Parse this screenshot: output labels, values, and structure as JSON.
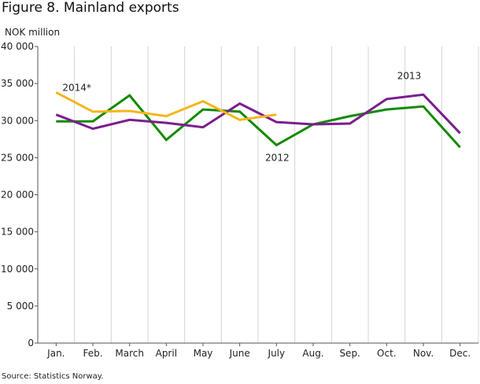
{
  "title": "Figure 8. Mainland exports",
  "source": "Source: Statistics Norway.",
  "chart_data": {
    "type": "line",
    "ylabel": "NOK million",
    "ylim": [
      0,
      40000
    ],
    "y_ticks": [
      0,
      5000,
      10000,
      15000,
      20000,
      25000,
      30000,
      35000,
      40000
    ],
    "y_tick_labels": [
      "0",
      "5 000",
      "10 000",
      "15 000",
      "20 000",
      "25 000",
      "30 000",
      "35 000",
      "40 000"
    ],
    "categories": [
      "Jan.",
      "Feb.",
      "March",
      "April",
      "May",
      "June",
      "July",
      "Aug.",
      "Sep.",
      "Oct.",
      "Nov.",
      "Dec."
    ],
    "grid": "vertical",
    "series": [
      {
        "name": "2012",
        "color": "#138a00",
        "values": [
          29900,
          29900,
          33400,
          27400,
          31500,
          31200,
          26700,
          29500,
          30600,
          31500,
          31900,
          26400
        ]
      },
      {
        "name": "2013",
        "color": "#7b1d8e",
        "values": [
          30800,
          28900,
          30100,
          29700,
          29100,
          32300,
          29800,
          29500,
          29600,
          32900,
          33500,
          28300
        ]
      },
      {
        "name": "2014*",
        "color": "#f5b51c",
        "values": [
          33800,
          31200,
          31300,
          30600,
          32600,
          30100,
          30800,
          null,
          null,
          null,
          null,
          null
        ]
      }
    ]
  }
}
